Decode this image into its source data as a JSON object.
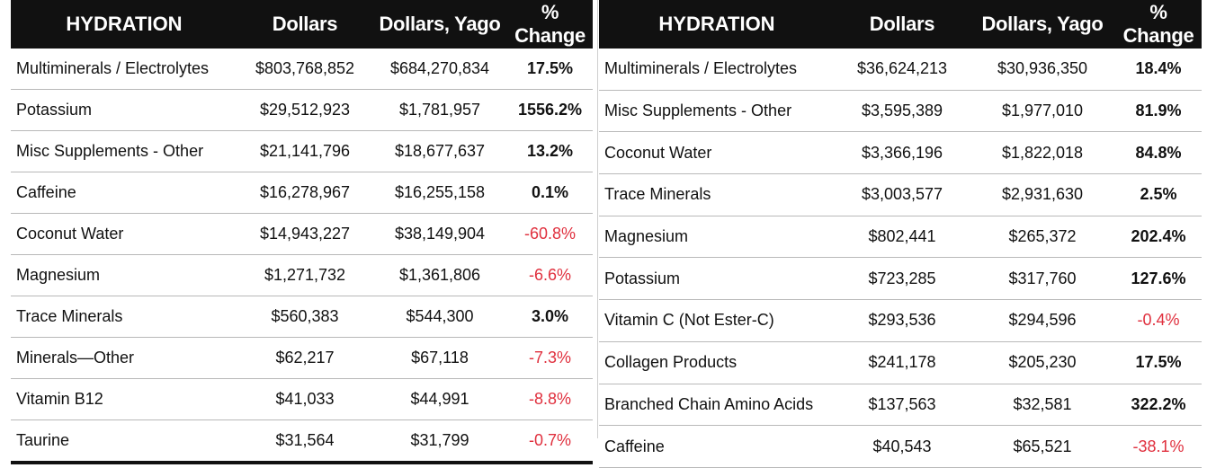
{
  "tables": [
    {
      "headers": [
        "HYDRATION",
        "Dollars",
        "Dollars, Yago",
        "% Change"
      ],
      "rows": [
        {
          "name": "Multiminerals / Electrolytes",
          "dollars": "$803,768,852",
          "yago": "$684,270,834",
          "change": "17.5%",
          "negative": false
        },
        {
          "name": "Potassium",
          "dollars": "$29,512,923",
          "yago": "$1,781,957",
          "change": "1556.2%",
          "negative": false
        },
        {
          "name": "Misc Supplements - Other",
          "dollars": "$21,141,796",
          "yago": "$18,677,637",
          "change": "13.2%",
          "negative": false
        },
        {
          "name": "Caffeine",
          "dollars": "$16,278,967",
          "yago": "$16,255,158",
          "change": "0.1%",
          "negative": false
        },
        {
          "name": "Coconut Water",
          "dollars": "$14,943,227",
          "yago": "$38,149,904",
          "change": "-60.8%",
          "negative": true
        },
        {
          "name": "Magnesium",
          "dollars": "$1,271,732",
          "yago": "$1,361,806",
          "change": "-6.6%",
          "negative": true
        },
        {
          "name": "Trace Minerals",
          "dollars": "$560,383",
          "yago": "$544,300",
          "change": "3.0%",
          "negative": false
        },
        {
          "name": "Minerals—Other",
          "dollars": "$62,217",
          "yago": "$67,118",
          "change": "-7.3%",
          "negative": true
        },
        {
          "name": "Vitamin B12",
          "dollars": "$41,033",
          "yago": "$44,991",
          "change": "-8.8%",
          "negative": true
        },
        {
          "name": "Taurine",
          "dollars": "$31,564",
          "yago": "$31,799",
          "change": "-0.7%",
          "negative": true
        }
      ]
    },
    {
      "headers": [
        "HYDRATION",
        "Dollars",
        "Dollars, Yago",
        "% Change"
      ],
      "rows": [
        {
          "name": "Multiminerals / Electrolytes",
          "dollars": "$36,624,213",
          "yago": "$30,936,350",
          "change": "18.4%",
          "negative": false
        },
        {
          "name": "Misc Supplements - Other",
          "dollars": "$3,595,389",
          "yago": "$1,977,010",
          "change": "81.9%",
          "negative": false
        },
        {
          "name": "Coconut Water",
          "dollars": "$3,366,196",
          "yago": "$1,822,018",
          "change": "84.8%",
          "negative": false
        },
        {
          "name": "Trace Minerals",
          "dollars": "$3,003,577",
          "yago": "$2,931,630",
          "change": "2.5%",
          "negative": false
        },
        {
          "name": "Magnesium",
          "dollars": "$802,441",
          "yago": "$265,372",
          "change": "202.4%",
          "negative": false
        },
        {
          "name": "Potassium",
          "dollars": "$723,285",
          "yago": "$317,760",
          "change": "127.6%",
          "negative": false
        },
        {
          "name": "Vitamin C (Not Ester-C)",
          "dollars": "$293,536",
          "yago": "$294,596",
          "change": "-0.4%",
          "negative": true
        },
        {
          "name": "Collagen Products",
          "dollars": "$241,178",
          "yago": "$205,230",
          "change": "17.5%",
          "negative": false
        },
        {
          "name": "Branched Chain Amino Acids",
          "dollars": "$137,563",
          "yago": "$32,581",
          "change": "322.2%",
          "negative": false
        },
        {
          "name": "Caffeine",
          "dollars": "$40,543",
          "yago": "$65,521",
          "change": "-38.1%",
          "negative": true
        }
      ]
    }
  ],
  "colors": {
    "header_bg": "#111111",
    "header_text": "#ffffff",
    "negative": "#e0303e",
    "text": "#111111",
    "row_border": "#b9b9b9"
  }
}
